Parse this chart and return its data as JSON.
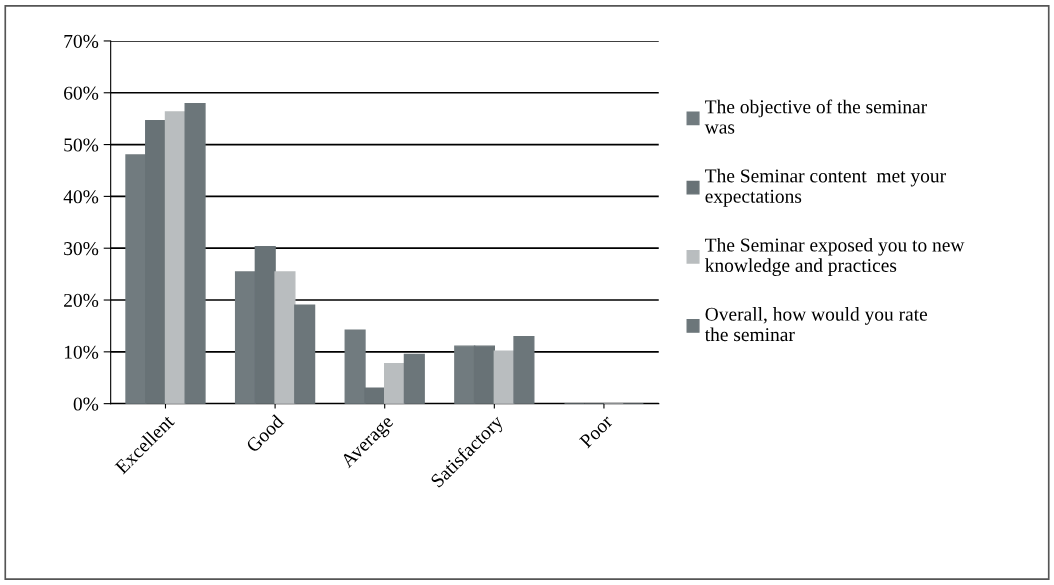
{
  "chart_data": {
    "type": "bar",
    "categories": [
      "Excellent",
      "Good",
      "Average",
      "Satisfactory",
      "Poor"
    ],
    "series": [
      {
        "name": "The objective of the seminar was",
        "color": "#717b7f",
        "values": [
          48.0,
          25.4,
          14.2,
          11.1,
          0
        ]
      },
      {
        "name": "The Seminar content  met your expectations",
        "color": "#687276",
        "values": [
          54.6,
          30.3,
          3.0,
          11.1,
          0
        ]
      },
      {
        "name": "The Seminar exposed you to new knowledge and practices",
        "color": "#b9bdbf",
        "values": [
          56.3,
          25.4,
          7.7,
          10.1,
          0
        ]
      },
      {
        "name": "Overall, how would you rate the seminar",
        "color": "#6c767a",
        "values": [
          57.9,
          19.0,
          9.5,
          12.9,
          0
        ]
      }
    ],
    "ylim": [
      0,
      70
    ],
    "yticks": [
      {
        "value": 0,
        "label": "0%"
      },
      {
        "value": 10,
        "label": "10%"
      },
      {
        "value": 20,
        "label": "20%"
      },
      {
        "value": 30,
        "label": "30%"
      },
      {
        "value": 40,
        "label": "40%"
      },
      {
        "value": 50,
        "label": "50%"
      },
      {
        "value": 60,
        "label": "60%"
      },
      {
        "value": 70,
        "label": "70%"
      }
    ],
    "grid": "y",
    "legend": "right"
  }
}
